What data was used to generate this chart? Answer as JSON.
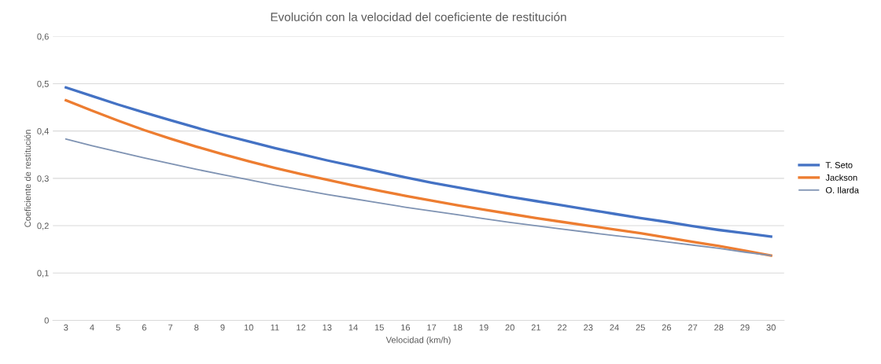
{
  "chart_data": {
    "type": "line",
    "title": "Evolución con la velocidad del coeficiente de restitución",
    "xlabel": "Velocidad (km/h)",
    "ylabel": "Coeficiente de restitución",
    "categories": [
      "3",
      "4",
      "5",
      "6",
      "7",
      "8",
      "9",
      "10",
      "11",
      "12",
      "13",
      "14",
      "15",
      "16",
      "17",
      "18",
      "19",
      "20",
      "21",
      "22",
      "23",
      "24",
      "25",
      "26",
      "27",
      "28",
      "29",
      "30"
    ],
    "series": [
      {
        "name": "T. Seto",
        "color": "#4472c4",
        "values": [
          0.492,
          0.474,
          0.456,
          0.439,
          0.423,
          0.407,
          0.392,
          0.378,
          0.364,
          0.351,
          0.338,
          0.326,
          0.314,
          0.302,
          0.291,
          0.281,
          0.271,
          0.261,
          0.252,
          0.243,
          0.234,
          0.225,
          0.216,
          0.208,
          0.199,
          0.191,
          0.184,
          0.177
        ]
      },
      {
        "name": "Jackson",
        "color": "#ed7d31",
        "values": [
          0.465,
          0.443,
          0.422,
          0.402,
          0.384,
          0.367,
          0.351,
          0.336,
          0.322,
          0.309,
          0.297,
          0.285,
          0.274,
          0.263,
          0.253,
          0.243,
          0.234,
          0.225,
          0.216,
          0.208,
          0.2,
          0.192,
          0.184,
          0.175,
          0.166,
          0.157,
          0.147,
          0.137
        ]
      },
      {
        "name": "O. Ilarda",
        "color": "#7f93b3",
        "values": [
          0.383,
          0.369,
          0.356,
          0.343,
          0.331,
          0.319,
          0.308,
          0.297,
          0.286,
          0.276,
          0.266,
          0.257,
          0.248,
          0.239,
          0.231,
          0.223,
          0.215,
          0.207,
          0.2,
          0.193,
          0.186,
          0.179,
          0.173,
          0.166,
          0.159,
          0.152,
          0.144,
          0.137
        ]
      }
    ],
    "ylim": [
      0,
      0.6
    ],
    "yticks": [
      {
        "value": 0,
        "label": "0"
      },
      {
        "value": 0.1,
        "label": "0,1"
      },
      {
        "value": 0.2,
        "label": "0,2"
      },
      {
        "value": 0.3,
        "label": "0,3"
      },
      {
        "value": 0.4,
        "label": "0,4"
      },
      {
        "value": 0.5,
        "label": "0,5"
      },
      {
        "value": 0.6,
        "label": "0,6"
      }
    ],
    "grid": "y",
    "legend": "right",
    "marker": "none",
    "line_style": "solid"
  }
}
